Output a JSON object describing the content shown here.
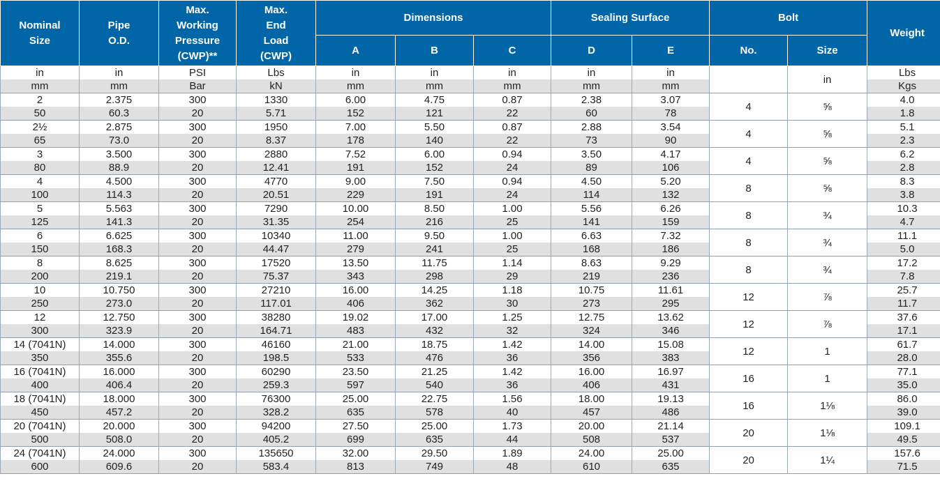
{
  "header": {
    "nominal_size": [
      "Nominal",
      "Size"
    ],
    "pipe_od": [
      "Pipe",
      "O.D."
    ],
    "max_working_pressure": [
      "Max.",
      "Working",
      "Pressure",
      "(CWP)**"
    ],
    "max_end_load": [
      "Max.",
      "End",
      "Load",
      "(CWP)"
    ],
    "dimensions": "Dimensions",
    "sealing_surface": "Sealing Surface",
    "bolt": "Bolt",
    "weight": "Weight",
    "dim_a": "A",
    "dim_b": "B",
    "dim_c": "C",
    "seal_d": "D",
    "seal_e": "E",
    "bolt_no": "No.",
    "bolt_size": "Size"
  },
  "units": {
    "imperial": [
      "in",
      "in",
      "PSI",
      "Lbs",
      "in",
      "in",
      "in",
      "in",
      "in"
    ],
    "metric": [
      "mm",
      "mm",
      "Bar",
      "kN",
      "mm",
      "mm",
      "mm",
      "mm",
      "mm"
    ],
    "bolt_size_unit": "in",
    "weight_imperial": "Lbs",
    "weight_metric": "Kgs"
  },
  "rows": [
    {
      "imp": [
        "2",
        "2.375",
        "300",
        "1330",
        "6.00",
        "4.75",
        "0.87",
        "2.38",
        "3.07"
      ],
      "met": [
        "50",
        "60.3",
        "20",
        "5.71",
        "152",
        "121",
        "22",
        "60",
        "78"
      ],
      "bolt_no": "4",
      "bolt_size": "⅝",
      "w_imp": "4.0",
      "w_met": "1.8"
    },
    {
      "imp": [
        "2½",
        "2.875",
        "300",
        "1950",
        "7.00",
        "5.50",
        "0.87",
        "2.88",
        "3.54"
      ],
      "met": [
        "65",
        "73.0",
        "20",
        "8.37",
        "178",
        "140",
        "22",
        "73",
        "90"
      ],
      "bolt_no": "4",
      "bolt_size": "⅝",
      "w_imp": "5.1",
      "w_met": "2.3"
    },
    {
      "imp": [
        "3",
        "3.500",
        "300",
        "2880",
        "7.52",
        "6.00",
        "0.94",
        "3.50",
        "4.17"
      ],
      "met": [
        "80",
        "88.9",
        "20",
        "12.41",
        "191",
        "152",
        "24",
        "89",
        "106"
      ],
      "bolt_no": "4",
      "bolt_size": "⅝",
      "w_imp": "6.2",
      "w_met": "2.8"
    },
    {
      "imp": [
        "4",
        "4.500",
        "300",
        "4770",
        "9.00",
        "7.50",
        "0.94",
        "4.50",
        "5.20"
      ],
      "met": [
        "100",
        "114.3",
        "20",
        "20.51",
        "229",
        "191",
        "24",
        "114",
        "132"
      ],
      "bolt_no": "8",
      "bolt_size": "⅝",
      "w_imp": "8.3",
      "w_met": "3.8"
    },
    {
      "imp": [
        "5",
        "5.563",
        "300",
        "7290",
        "10.00",
        "8.50",
        "1.00",
        "5.56",
        "6.26"
      ],
      "met": [
        "125",
        "141.3",
        "20",
        "31.35",
        "254",
        "216",
        "25",
        "141",
        "159"
      ],
      "bolt_no": "8",
      "bolt_size": "¾",
      "w_imp": "10.3",
      "w_met": "4.7"
    },
    {
      "imp": [
        "6",
        "6.625",
        "300",
        "10340",
        "11.00",
        "9.50",
        "1.00",
        "6.63",
        "7.32"
      ],
      "met": [
        "150",
        "168.3",
        "20",
        "44.47",
        "279",
        "241",
        "25",
        "168",
        "186"
      ],
      "bolt_no": "8",
      "bolt_size": "¾",
      "w_imp": "11.1",
      "w_met": "5.0"
    },
    {
      "imp": [
        "8",
        "8.625",
        "300",
        "17520",
        "13.50",
        "11.75",
        "1.14",
        "8.63",
        "9.29"
      ],
      "met": [
        "200",
        "219.1",
        "20",
        "75.37",
        "343",
        "298",
        "29",
        "219",
        "236"
      ],
      "bolt_no": "8",
      "bolt_size": "¾",
      "w_imp": "17.2",
      "w_met": "7.8"
    },
    {
      "imp": [
        "10",
        "10.750",
        "300",
        "27210",
        "16.00",
        "14.25",
        "1.18",
        "10.75",
        "11.61"
      ],
      "met": [
        "250",
        "273.0",
        "20",
        "117.01",
        "406",
        "362",
        "30",
        "273",
        "295"
      ],
      "bolt_no": "12",
      "bolt_size": "⅞",
      "w_imp": "25.7",
      "w_met": "11.7"
    },
    {
      "imp": [
        "12",
        "12.750",
        "300",
        "38280",
        "19.02",
        "17.00",
        "1.25",
        "12.75",
        "13.62"
      ],
      "met": [
        "300",
        "323.9",
        "20",
        "164.71",
        "483",
        "432",
        "32",
        "324",
        "346"
      ],
      "bolt_no": "12",
      "bolt_size": "⅞",
      "w_imp": "37.6",
      "w_met": "17.1"
    },
    {
      "imp": [
        "14 (7041N)",
        "14.000",
        "300",
        "46160",
        "21.00",
        "18.75",
        "1.42",
        "14.00",
        "15.08"
      ],
      "met": [
        "350",
        "355.6",
        "20",
        "198.5",
        "533",
        "476",
        "36",
        "356",
        "383"
      ],
      "bolt_no": "12",
      "bolt_size": "1",
      "w_imp": "61.7",
      "w_met": "28.0"
    },
    {
      "imp": [
        "16 (7041N)",
        "16.000",
        "300",
        "60290",
        "23.50",
        "21.25",
        "1.42",
        "16.00",
        "16.97"
      ],
      "met": [
        "400",
        "406.4",
        "20",
        "259.3",
        "597",
        "540",
        "36",
        "406",
        "431"
      ],
      "bolt_no": "16",
      "bolt_size": "1",
      "w_imp": "77.1",
      "w_met": "35.0"
    },
    {
      "imp": [
        "18 (7041N)",
        "18.000",
        "300",
        "76300",
        "25.00",
        "22.75",
        "1.56",
        "18.00",
        "19.13"
      ],
      "met": [
        "450",
        "457.2",
        "20",
        "328.2",
        "635",
        "578",
        "40",
        "457",
        "486"
      ],
      "bolt_no": "16",
      "bolt_size": "1⅛",
      "w_imp": "86.0",
      "w_met": "39.0"
    },
    {
      "imp": [
        "20 (7041N)",
        "20.000",
        "300",
        "94200",
        "27.50",
        "25.00",
        "1.73",
        "20.00",
        "21.14"
      ],
      "met": [
        "500",
        "508.0",
        "20",
        "405.2",
        "699",
        "635",
        "44",
        "508",
        "537"
      ],
      "bolt_no": "20",
      "bolt_size": "1⅛",
      "w_imp": "109.1",
      "w_met": "49.5"
    },
    {
      "imp": [
        "24 (7041N)",
        "24.000",
        "300",
        "135650",
        "32.00",
        "29.50",
        "1.89",
        "24.00",
        "25.00"
      ],
      "met": [
        "600",
        "609.6",
        "20",
        "583.4",
        "813",
        "749",
        "48",
        "610",
        "635"
      ],
      "bolt_no": "20",
      "bolt_size": "1¼",
      "w_imp": "157.6",
      "w_met": "71.5"
    }
  ]
}
